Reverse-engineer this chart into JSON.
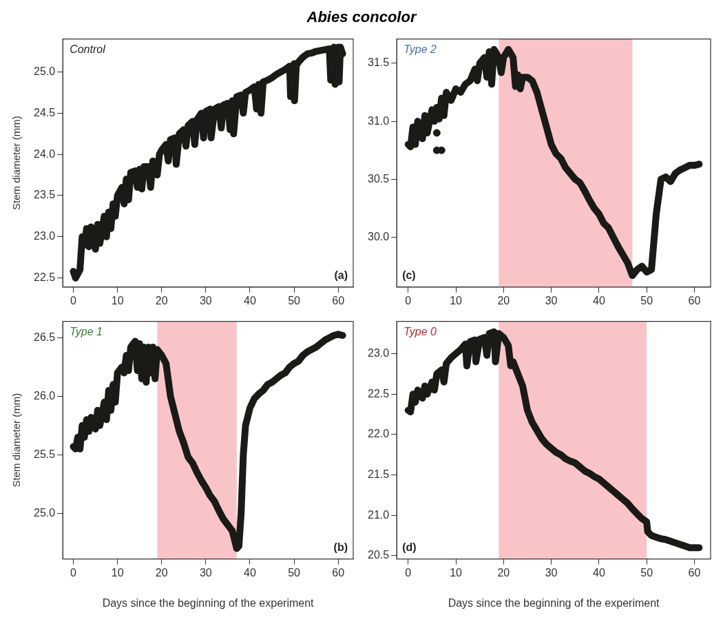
{
  "chart_data": [
    {
      "type": "line",
      "title": "Abies concolor",
      "ylabel": "Stem diameter (mm)",
      "annotations": [
        "Control",
        "(a)"
      ],
      "xlim": [
        -2.4,
        63.4
      ],
      "xticks": [
        0,
        10,
        20,
        30,
        40,
        50,
        60
      ],
      "ylim": [
        22.39,
        25.4
      ],
      "yticks": [
        22.5,
        {
          "value": 23,
          "label": "23.0"
        },
        23.5,
        {
          "value": 24,
          "label": "24.0"
        },
        24.5,
        {
          "value": 25,
          "label": "25.0"
        }
      ],
      "grid": false,
      "legend": false,
      "marker": "none",
      "line_style": "solid",
      "series": [
        {
          "color": "#1a1a16",
          "x": [
            0,
            0.5,
            1,
            1.5,
            2,
            2.5,
            3,
            3.5,
            4,
            5,
            5.5,
            6,
            7,
            7.5,
            8,
            8.5,
            9,
            9.5,
            10,
            11,
            11.5,
            12,
            12.5,
            13,
            14,
            14.5,
            15,
            15.5,
            16,
            17,
            17.5,
            18,
            19,
            19.5,
            20,
            21,
            21.5,
            22,
            23,
            23.3,
            24,
            25,
            25.5,
            26,
            27,
            27.5,
            28,
            29,
            29.5,
            30,
            31,
            31.2,
            32,
            33,
            33.5,
            34,
            35,
            35.5,
            36,
            36.3,
            37,
            38,
            38.5,
            39,
            40,
            41,
            41.5,
            42,
            42.5,
            43,
            44,
            45,
            46,
            47,
            48,
            49,
            49.2,
            49.5,
            50,
            50.1,
            50.5,
            51,
            52,
            53,
            54,
            55,
            56,
            57,
            58,
            58.3,
            59,
            59.3,
            60,
            60.2,
            60.5,
            61
          ],
          "values": [
            22.58,
            22.5,
            22.55,
            22.6,
            23.0,
            22.9,
            23.1,
            22.88,
            23.12,
            22.85,
            23.15,
            22.92,
            23.25,
            23.0,
            23.3,
            23.1,
            23.4,
            23.25,
            23.5,
            23.6,
            23.4,
            23.7,
            23.45,
            23.78,
            23.8,
            23.6,
            23.82,
            23.58,
            23.85,
            23.85,
            23.6,
            23.92,
            23.75,
            24.0,
            24.05,
            24.12,
            23.92,
            24.18,
            24.2,
            23.88,
            24.25,
            24.3,
            24.1,
            24.35,
            24.4,
            24.12,
            24.42,
            24.5,
            24.2,
            24.52,
            24.55,
            24.2,
            24.55,
            24.58,
            24.32,
            24.6,
            24.62,
            24.3,
            24.65,
            24.25,
            24.7,
            24.72,
            24.5,
            24.75,
            24.78,
            24.82,
            24.55,
            24.85,
            24.5,
            24.88,
            24.9,
            24.93,
            24.97,
            25.0,
            25.03,
            25.07,
            24.7,
            25.05,
            25.1,
            24.65,
            25.08,
            25.12,
            25.18,
            25.22,
            25.23,
            25.25,
            25.26,
            25.27,
            25.28,
            24.9,
            25.3,
            24.85,
            25.3,
            24.88,
            25.3,
            25.22
          ]
        }
      ]
    },
    {
      "type": "line",
      "annotations": [
        "Type 2",
        "(c)"
      ],
      "xlim": [
        -2.4,
        63.4
      ],
      "xticks": [
        0,
        10,
        20,
        30,
        40,
        50,
        60
      ],
      "ylim": [
        29.57,
        31.71
      ],
      "yticks": [
        {
          "value": 30,
          "label": "30.0"
        },
        30.5,
        {
          "value": 31,
          "label": "31.0"
        },
        31.5
      ],
      "grid": false,
      "legend": false,
      "marker": "none",
      "line_style": "solid",
      "bands": [
        {
          "axis": "x",
          "from": 19,
          "to": 47,
          "color": "#f9c4c8"
        }
      ],
      "series": [
        {
          "color": "#1a1a16",
          "x": [
            0,
            0.5,
            1,
            1.5,
            2,
            3,
            3.5,
            4,
            5,
            5.5,
            6,
            6.5,
            7,
            7.5,
            8,
            9,
            10,
            11,
            12,
            13,
            14,
            14.5,
            15,
            16,
            16.5,
            17,
            17.5,
            18,
            19,
            19.5,
            20,
            21,
            22,
            22.5,
            23,
            23.5,
            24,
            25,
            26,
            27,
            28,
            29,
            30,
            31,
            32,
            33,
            34,
            35,
            36,
            37,
            38,
            39,
            40,
            41,
            42,
            43,
            44,
            45,
            46,
            47,
            48,
            49,
            50,
            51,
            52,
            53,
            54,
            55,
            56,
            57,
            58,
            59,
            60,
            61
          ],
          "values": [
            30.8,
            30.78,
            30.95,
            30.8,
            31.0,
            30.85,
            31.05,
            30.9,
            31.1,
            31.0,
            31.12,
            31.02,
            31.2,
            31.05,
            31.25,
            31.18,
            31.28,
            31.25,
            31.32,
            31.35,
            31.45,
            31.35,
            31.5,
            31.55,
            31.38,
            31.6,
            31.32,
            31.62,
            31.55,
            31.42,
            31.55,
            31.62,
            31.55,
            31.3,
            31.4,
            31.28,
            31.38,
            31.38,
            31.35,
            31.25,
            31.1,
            30.95,
            30.8,
            30.72,
            30.68,
            30.6,
            30.55,
            30.5,
            30.47,
            30.4,
            30.32,
            30.25,
            30.2,
            30.12,
            30.08,
            30.0,
            29.92,
            29.85,
            29.78,
            29.67,
            29.72,
            29.75,
            29.7,
            29.72,
            30.2,
            30.5,
            30.52,
            30.48,
            30.55,
            30.58,
            30.6,
            30.62,
            30.62,
            30.63
          ]
        },
        {
          "type": "scatter",
          "marker": "circle",
          "color": "#1a1a16",
          "x": [
            6,
            6,
            7
          ],
          "values": [
            30.9,
            30.75,
            30.75
          ]
        }
      ]
    },
    {
      "type": "line",
      "xlabel": "Days since the beginning of the experiment",
      "ylabel": "Stem diameter (mm)",
      "annotations": [
        "Type 1",
        "(b)"
      ],
      "xlim": [
        -2.4,
        63.4
      ],
      "xticks": [
        0,
        10,
        20,
        30,
        40,
        50,
        60
      ],
      "ylim": [
        24.61,
        26.64
      ],
      "yticks": [
        {
          "value": 25,
          "label": "25.0"
        },
        25.5,
        {
          "value": 26,
          "label": "26.0"
        },
        26.5
      ],
      "grid": false,
      "legend": false,
      "marker": "none",
      "line_style": "solid",
      "bands": [
        {
          "axis": "x",
          "from": 19,
          "to": 37,
          "color": "#f9c4c8"
        }
      ],
      "series": [
        {
          "color": "#1a1a16",
          "x": [
            0,
            0.5,
            1,
            1.5,
            2,
            2.5,
            3,
            3.5,
            4,
            5,
            5.5,
            6,
            7,
            7.5,
            8,
            8.5,
            9,
            9.5,
            10,
            11,
            11.5,
            12,
            12.5,
            13,
            14,
            14.5,
            15,
            15.5,
            16,
            16.5,
            17,
            17.5,
            18,
            18.5,
            19,
            20,
            21,
            22,
            23,
            24,
            25,
            26,
            27,
            28,
            29,
            30,
            31,
            32,
            33,
            34,
            35,
            36,
            37,
            37.5,
            38,
            38.5,
            39,
            40,
            41,
            42,
            43,
            44,
            45,
            46,
            47,
            48,
            49,
            50,
            51,
            52,
            53,
            54,
            55,
            56,
            57,
            58,
            59,
            60,
            61
          ],
          "values": [
            25.57,
            25.55,
            25.65,
            25.55,
            25.75,
            25.65,
            25.8,
            25.7,
            25.82,
            25.72,
            25.88,
            25.75,
            25.95,
            25.8,
            26.05,
            25.88,
            26.1,
            25.95,
            26.2,
            26.25,
            26.2,
            26.35,
            26.22,
            26.42,
            26.47,
            26.22,
            26.45,
            26.15,
            26.42,
            26.12,
            26.42,
            26.2,
            26.42,
            26.15,
            26.4,
            26.35,
            26.28,
            26.0,
            25.85,
            25.7,
            25.6,
            25.48,
            25.43,
            25.35,
            25.28,
            25.22,
            25.15,
            25.1,
            25.02,
            24.95,
            24.9,
            24.85,
            24.7,
            24.72,
            25.0,
            25.5,
            25.75,
            25.9,
            25.98,
            26.02,
            26.05,
            26.1,
            26.12,
            26.15,
            26.18,
            26.2,
            26.25,
            26.28,
            26.3,
            26.35,
            26.38,
            26.4,
            26.42,
            26.45,
            26.48,
            26.5,
            26.52,
            26.53,
            26.52
          ]
        }
      ]
    },
    {
      "type": "line",
      "xlabel": "Days since the beginning of the experiment",
      "annotations": [
        "Type 0",
        "(d)"
      ],
      "xlim": [
        -2.4,
        63.4
      ],
      "xticks": [
        0,
        10,
        20,
        30,
        40,
        50,
        60
      ],
      "ylim": [
        20.46,
        23.4
      ],
      "yticks": [
        20.5,
        {
          "value": 21,
          "label": "21.0"
        },
        21.5,
        {
          "value": 22,
          "label": "22.0"
        },
        22.5,
        {
          "value": 23,
          "label": "23.0"
        }
      ],
      "grid": false,
      "legend": false,
      "marker": "none",
      "line_style": "solid",
      "bands": [
        {
          "axis": "x",
          "from": 19,
          "to": 50,
          "color": "#f9c4c8"
        }
      ],
      "series": [
        {
          "color": "#1a1a16",
          "x": [
            0,
            0.5,
            1,
            1.5,
            2,
            3,
            3.5,
            4,
            5,
            5.5,
            6,
            7,
            7.5,
            8,
            9,
            10,
            11,
            12,
            12.3,
            13,
            14,
            14.2,
            15,
            16,
            16.5,
            17,
            18,
            18.3,
            19,
            20,
            21,
            21.5,
            22,
            23,
            24,
            25,
            26,
            27,
            28,
            29,
            30,
            31,
            32,
            33,
            34,
            35,
            36,
            37,
            38,
            39,
            40,
            41,
            42,
            43,
            44,
            45,
            46,
            47,
            48,
            49,
            50,
            50.2,
            51,
            52,
            53,
            54,
            55,
            56,
            57,
            58,
            59,
            60,
            61
          ],
          "values": [
            22.3,
            22.28,
            22.5,
            22.4,
            22.55,
            22.45,
            22.6,
            22.5,
            22.65,
            22.55,
            22.75,
            22.8,
            22.65,
            22.88,
            22.95,
            23.0,
            23.05,
            23.12,
            22.85,
            23.15,
            23.17,
            22.9,
            23.18,
            23.2,
            22.98,
            23.25,
            23.27,
            22.9,
            23.25,
            23.2,
            23.1,
            22.85,
            22.9,
            22.75,
            22.6,
            22.3,
            22.15,
            22.05,
            21.95,
            21.88,
            21.83,
            21.78,
            21.75,
            21.7,
            21.67,
            21.65,
            21.6,
            21.55,
            21.52,
            21.48,
            21.45,
            21.4,
            21.35,
            21.3,
            21.25,
            21.2,
            21.15,
            21.08,
            21.02,
            20.96,
            20.92,
            20.8,
            20.75,
            20.73,
            20.71,
            20.7,
            20.68,
            20.66,
            20.64,
            20.62,
            20.6,
            20.6,
            20.6
          ]
        }
      ]
    }
  ]
}
